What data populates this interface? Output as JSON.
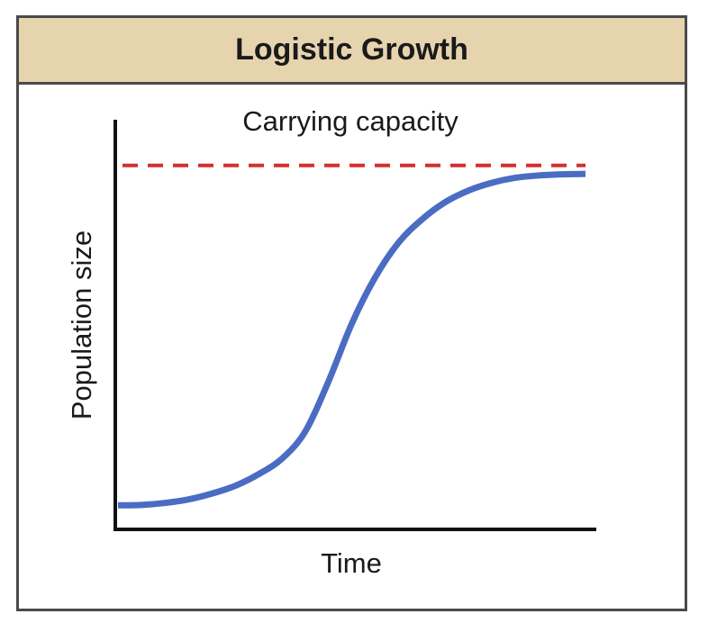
{
  "header": {
    "title": "Logistic Growth"
  },
  "chart_data": {
    "type": "line",
    "title": "Logistic Growth",
    "xlabel": "Time",
    "ylabel": "Population size",
    "xlim": [
      0,
      10
    ],
    "ylim": [
      0,
      1
    ],
    "grid": false,
    "carrying_capacity": {
      "label": "Carrying capacity",
      "value": 0.94,
      "color": "#d62e2e",
      "style": "dashed"
    },
    "series": [
      {
        "color": "#4a6cc2",
        "x": [
          0,
          0.5,
          1,
          1.5,
          2,
          2.5,
          3,
          3.5,
          4,
          4.5,
          5,
          5.5,
          6,
          6.5,
          7,
          7.5,
          8,
          8.5,
          9,
          9.5,
          10
        ],
        "y": [
          0.06,
          0.061,
          0.066,
          0.075,
          0.09,
          0.11,
          0.14,
          0.18,
          0.25,
          0.38,
          0.53,
          0.65,
          0.74,
          0.8,
          0.845,
          0.875,
          0.895,
          0.908,
          0.914,
          0.917,
          0.918
        ]
      }
    ]
  },
  "colors": {
    "header_bg": "#e6d4ae",
    "border": "#4a4a4a",
    "curve": "#4a6cc2",
    "capacity_line": "#d62e2e"
  }
}
